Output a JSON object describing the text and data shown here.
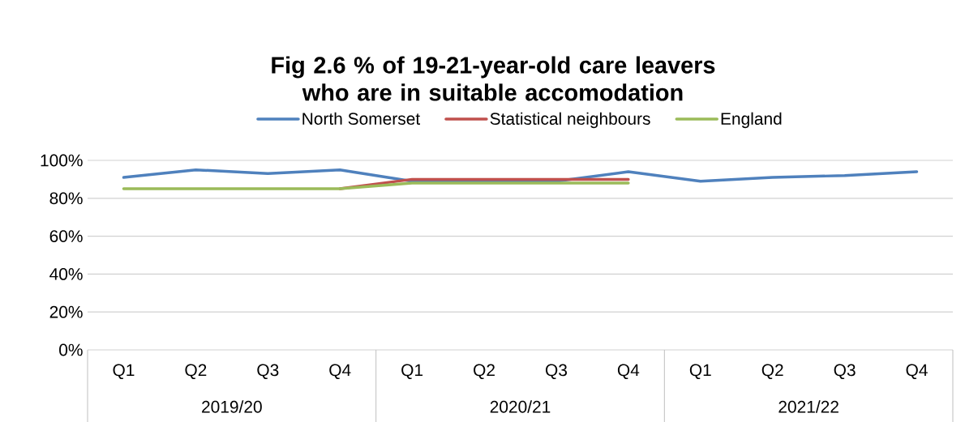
{
  "chart_data": {
    "type": "line",
    "title": "Fig 2.6 % of 19-21-year-old care leavers who are in suitable accomodation",
    "categories": [
      "Q1",
      "Q2",
      "Q3",
      "Q4",
      "Q1",
      "Q2",
      "Q3",
      "Q4",
      "Q1",
      "Q2",
      "Q3",
      "Q4"
    ],
    "annotations": [
      "2019/20",
      "2020/21",
      "2021/22"
    ],
    "series": [
      {
        "name": "North Somerset",
        "color": "#4f81bd",
        "values": [
          91,
          95,
          93,
          95,
          89,
          89,
          89,
          94,
          89,
          91,
          92,
          94
        ]
      },
      {
        "name": "Statistical neighbours",
        "color": "#c0504d",
        "values": [
          null,
          null,
          null,
          85,
          90,
          90,
          90,
          90,
          null,
          null,
          null,
          null
        ]
      },
      {
        "name": "England",
        "color": "#9bbb59",
        "values": [
          85,
          85,
          85,
          85,
          88,
          88,
          88,
          88,
          null,
          null,
          null,
          null
        ]
      }
    ],
    "ylim": [
      0,
      100
    ],
    "yticks": [
      {
        "value": 0,
        "label": "0%"
      },
      {
        "value": 20,
        "label": "20%"
      },
      {
        "value": 40,
        "label": "40%"
      },
      {
        "value": 60,
        "label": "60%"
      },
      {
        "value": 80,
        "label": "80%"
      },
      {
        "value": 100,
        "label": "100%"
      }
    ],
    "grid": "y",
    "legend": "top",
    "marker": "none",
    "line_style": "solid"
  }
}
